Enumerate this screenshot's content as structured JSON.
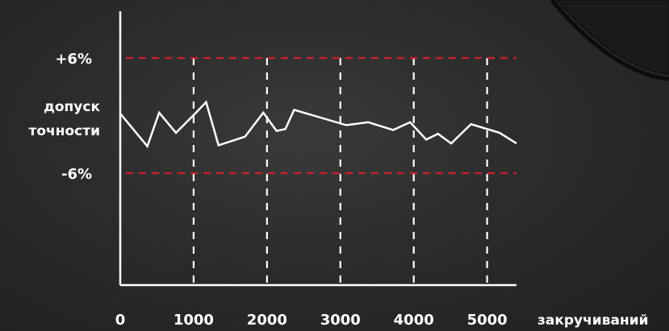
{
  "chart_data": {
    "type": "line",
    "xlabel": "закручиваний",
    "ylabel": [
      "допуск",
      "точности"
    ],
    "x_ticks": [
      0,
      1000,
      2000,
      3000,
      4000,
      5000
    ],
    "xlim": [
      0,
      5400
    ],
    "ylim": [
      -12,
      8
    ],
    "reference_lines": [
      {
        "label": "+6%",
        "value": 6,
        "color": "#d0202a",
        "style": "dashed"
      },
      {
        "label": "-6%",
        "value": -6,
        "color": "#d0202a",
        "style": "dashed"
      }
    ],
    "vertical_gridlines": [
      1000,
      2000,
      3000,
      4000,
      5000
    ],
    "series": [
      {
        "color": "#ffffff",
        "x": [
          0,
          370,
          530,
          760,
          1020,
          1170,
          1340,
          1700,
          1950,
          2130,
          2250,
          2370,
          3080,
          3380,
          3720,
          3950,
          4170,
          4330,
          4510,
          4780,
          5170,
          5400
        ],
        "y": [
          0.2,
          -3.2,
          0.3,
          -1.8,
          0.2,
          1.4,
          -3.1,
          -2.2,
          0.3,
          -1.6,
          -1.4,
          0.6,
          -1.0,
          -0.7,
          -1.5,
          -0.7,
          -2.5,
          -1.9,
          -2.9,
          -0.9,
          -1.8,
          -2.9
        ]
      }
    ],
    "grid": true
  }
}
